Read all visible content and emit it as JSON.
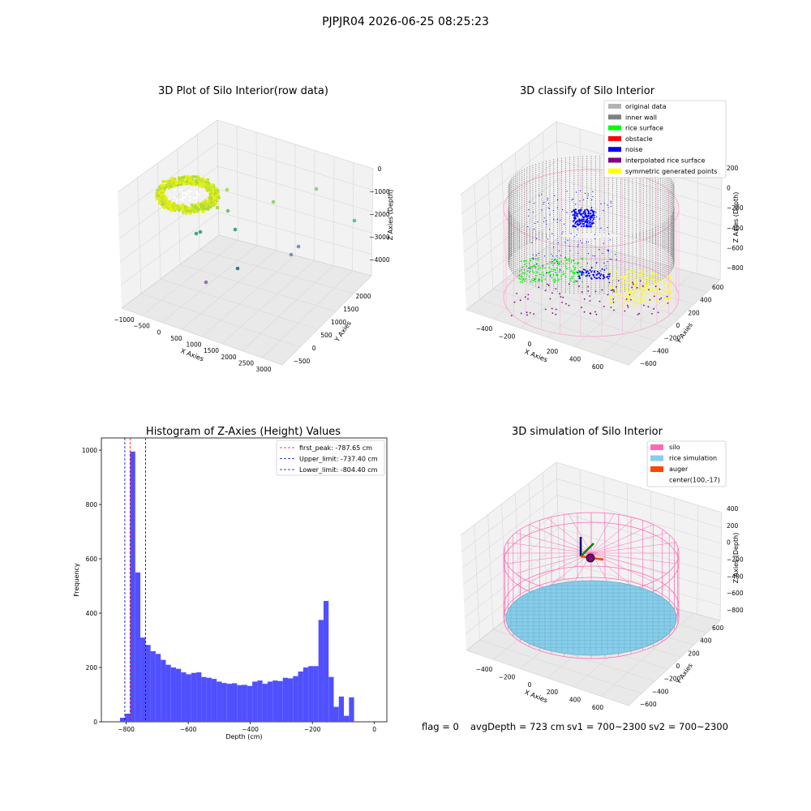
{
  "figure": {
    "suptitle": "PJPJR04 2026-06-25 08:25:23",
    "status": {
      "flag": "flag = 0",
      "avg_depth": "avgDepth = 723 cm",
      "sv1": "sv1 = 700~2300",
      "sv2": "sv2 = 700~2300"
    }
  },
  "colors": {
    "original": "#b3b3b3",
    "inner_wall": "#808080",
    "rice_surface": "#00ff00",
    "obstacle": "#ff0000",
    "noise": "#0000ff",
    "interpolated": "#800080",
    "symmetric": "#ffff00",
    "silo": "#ff69b4",
    "rice_sim": "#87ceeb",
    "auger": "#ff4500",
    "hist_bar": "#5050ff",
    "pane_wall": "#f2f2f2",
    "pane_floor": "#e9e9e9"
  },
  "chart_data": [
    {
      "type": "scatter",
      "subtype": "3d",
      "title": "3D Plot of Silo Interior(row data)",
      "xlabel": "X Axies",
      "ylabel": "Y Axies",
      "zlabel": "Z Axies (Depth)",
      "x_ticks": [
        "−1000",
        "−500",
        "0",
        "500",
        "1000",
        "1500",
        "2000",
        "2500",
        "3000"
      ],
      "y_ticks": [
        "−500",
        "0",
        "500",
        "1000",
        "1500",
        "2000"
      ],
      "z_ticks": [
        "0",
        "−1000",
        "−2000",
        "−3000",
        "−4000"
      ],
      "xlim": [
        -1000,
        3000
      ],
      "ylim": [
        -500,
        2000
      ],
      "zlim": [
        -4500,
        0
      ],
      "point_cloud": "dense yellow-green ring of points near x -1000~0, z ~ -1000; sparse outliers elsewhere",
      "outliers": [
        {
          "x": 1800,
          "y": 500,
          "z": -500
        },
        {
          "x": 2700,
          "y": 1000,
          "z": -2000
        },
        {
          "x": 1200,
          "y": 500,
          "z": -800
        },
        {
          "x": 500,
          "y": 300,
          "z": -1500
        },
        {
          "x": 900,
          "y": 1200,
          "z": -3300
        },
        {
          "x": 2000,
          "y": 1500,
          "z": -3800
        },
        {
          "x": 600,
          "y": 900,
          "z": -3600
        }
      ]
    },
    {
      "type": "scatter",
      "subtype": "3d",
      "title": "3D classify of Silo Interior",
      "xlabel": "X Axies",
      "ylabel": "Y Axies",
      "zlabel": "Z Axies (Depth)",
      "x_ticks": [
        "−400",
        "−200",
        "0",
        "200",
        "400",
        "600"
      ],
      "y_ticks": [
        "−600",
        "−400",
        "−200",
        "0",
        "200",
        "400",
        "600"
      ],
      "z_ticks": [
        "200",
        "0",
        "−200",
        "−400",
        "−600",
        "−800"
      ],
      "xlim": [
        -500,
        700
      ],
      "ylim": [
        -700,
        700
      ],
      "zlim": [
        -950,
        300
      ],
      "legend": [
        {
          "label": "original data",
          "color_key": "original"
        },
        {
          "label": "inner wall",
          "color_key": "inner_wall"
        },
        {
          "label": "rice surface",
          "color_key": "rice_surface"
        },
        {
          "label": "obstacle",
          "color_key": "obstacle"
        },
        {
          "label": "noise",
          "color_key": "noise"
        },
        {
          "label": "interpolated rice surface",
          "color_key": "interpolated"
        },
        {
          "label": "symmetric generated points",
          "color_key": "symmetric"
        }
      ],
      "legend_position": "top-right"
    },
    {
      "type": "bar",
      "subtype": "histogram",
      "title": "Histogram of Z-Axies (Height) Values",
      "xlabel": "Depth (cm)",
      "ylabel": "Frequency",
      "xlim": [
        -880,
        40
      ],
      "ylim": [
        0,
        1045
      ],
      "x_ticks": [
        -800,
        -600,
        -400,
        -200,
        0
      ],
      "x_tick_labels": [
        "−800",
        "−600",
        "−400",
        "−200",
        "0"
      ],
      "y_ticks": [
        0,
        200,
        400,
        600,
        800,
        1000
      ],
      "y_tick_labels": [
        "0",
        "200",
        "400",
        "600",
        "800",
        "1000"
      ],
      "bin_start": -820,
      "bin_width": 16.4,
      "values": [
        15,
        30,
        995,
        550,
        310,
        283,
        260,
        250,
        228,
        210,
        200,
        195,
        182,
        175,
        180,
        182,
        165,
        162,
        158,
        148,
        143,
        140,
        142,
        135,
        136,
        132,
        148,
        152,
        140,
        148,
        152,
        150,
        162,
        160,
        168,
        185,
        200,
        205,
        205,
        375,
        445,
        165,
        55,
        93,
        22,
        90
      ],
      "vlines": [
        {
          "value": -787.65,
          "label": "first_peak: -787.65 cm",
          "color": "#ff0000"
        },
        {
          "value": -737.4,
          "label": "Upper_limit: -737.40 cm",
          "color": "#0000aa"
        },
        {
          "value": -804.4,
          "label": "Lower_limit: -804.40 cm",
          "color": "#0000aa"
        }
      ],
      "legend_position": "top-right"
    },
    {
      "type": "scatter",
      "subtype": "3d",
      "title": "3D simulation of Silo Interior",
      "xlabel": "X Axies",
      "ylabel": "Y Axies",
      "zlabel": "Z Axies (Depth)",
      "x_ticks": [
        "−400",
        "−200",
        "0",
        "200",
        "400",
        "600"
      ],
      "y_ticks": [
        "−600",
        "−400",
        "−200",
        "0",
        "200",
        "400",
        "600"
      ],
      "z_ticks": [
        "400",
        "200",
        "0",
        "−200",
        "−400",
        "−600",
        "−800"
      ],
      "xlim": [
        -500,
        700
      ],
      "ylim": [
        -700,
        700
      ],
      "zlim": [
        -950,
        500
      ],
      "legend": [
        {
          "label": "silo",
          "color_key": "silo"
        },
        {
          "label": "rice simulation",
          "color_key": "rice_sim"
        },
        {
          "label": "auger",
          "color_key": "auger"
        },
        {
          "label": "center(100,-17)",
          "color_key": ""
        }
      ],
      "legend_position": "top-right"
    }
  ]
}
